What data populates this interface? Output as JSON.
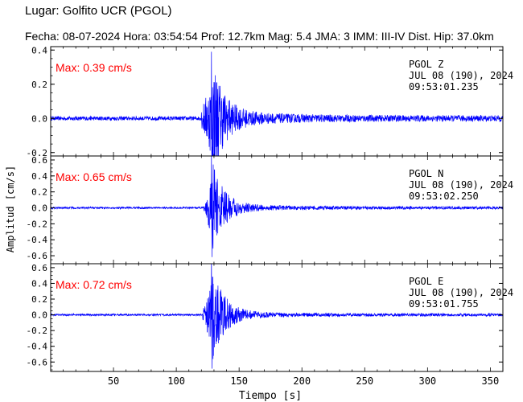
{
  "header": {
    "title": "Lugar: Golfito UCR (PGOL)",
    "info": "Fecha: 08-07-2024 Hora: 03:54:54 Prof: 12.7km Mag: 5.4   JMA:  3 IMM: III-IV Dist. Hip: 37.0km"
  },
  "chart_data": {
    "type": "line",
    "xlabel": "Tiempo [s]",
    "ylabel": "Amplitud [cm/s]",
    "xlim": [
      0,
      360
    ],
    "xticks": [
      50,
      100,
      150,
      200,
      250,
      300,
      350
    ],
    "panels": [
      {
        "component": "Z",
        "max_label": "Max: 0.39 cm/s",
        "peak": 0.39,
        "station_line": "PGOL   Z",
        "date_line": "JUL 08 (190), 2024",
        "time_line": "09:53:01.235",
        "ylim": [
          -0.22,
          0.42
        ],
        "yticks": [
          -0.2,
          0.0,
          0.2,
          0.4
        ],
        "ytick_labels": [
          "-0.2",
          "0.0",
          "0.2",
          "0.4"
        ],
        "onset": 120,
        "peak_time": 128,
        "precursor": 0.06
      },
      {
        "component": "N",
        "max_label": "Max: 0.65 cm/s",
        "peak": 0.65,
        "station_line": "PGOL   N",
        "date_line": "JUL 08 (190), 2024",
        "time_line": "09:53:02.250",
        "ylim": [
          -0.7,
          0.65
        ],
        "yticks": [
          -0.6,
          -0.4,
          -0.2,
          0.0,
          0.2,
          0.4,
          0.6
        ],
        "ytick_labels": [
          "-0.6",
          "-0.4",
          "-0.2",
          "0.0",
          "0.2",
          "0.4",
          "0.6"
        ],
        "onset": 122,
        "peak_time": 128,
        "precursor": 0.05
      },
      {
        "component": "E",
        "max_label": "Max: 0.72 cm/s",
        "peak": 0.72,
        "station_line": "PGOL   E",
        "date_line": "JUL 08 (190), 2024",
        "time_line": "09:53:01.755",
        "ylim": [
          -0.72,
          0.65
        ],
        "yticks": [
          -0.6,
          -0.4,
          -0.2,
          0.0,
          0.2,
          0.4,
          0.6
        ],
        "ytick_labels": [
          "-0.6",
          "-0.4",
          "-0.2",
          "0.0",
          "0.2",
          "0.4",
          "0.6"
        ],
        "onset": 121,
        "peak_time": 128,
        "precursor": 0.06
      }
    ],
    "trace_color": "#0000ff",
    "max_label_color": "#ff0000",
    "legend": "none",
    "grid": false
  }
}
